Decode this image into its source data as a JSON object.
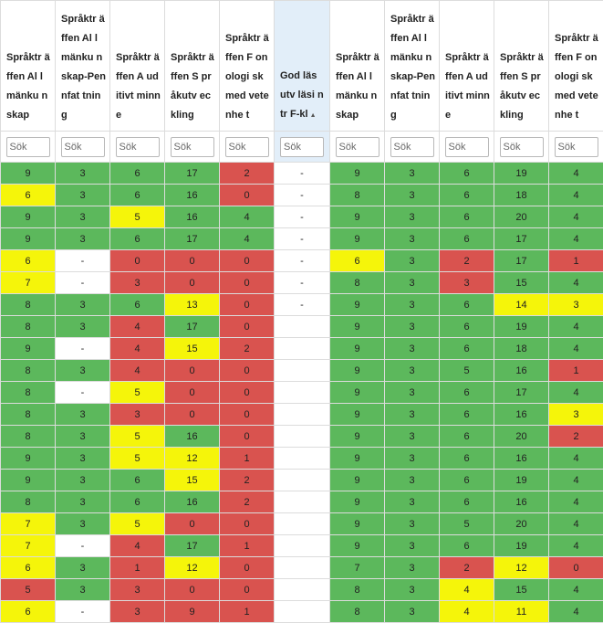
{
  "colors": {
    "green": "#5cb85c",
    "red": "#d9534f",
    "yellow": "#f5f50a",
    "white": "#ffffff",
    "sorted_header_bg": "#e2eef9"
  },
  "table": {
    "sorted_column": 5,
    "sort_indicator": "▲",
    "headers": [
      "Språktr äffen Al lmänku nskap",
      "Språktr äffen Al lmänku nskap-Pennfat tning",
      "Språktr äffen A uditivt minne",
      "Språktr äffen S pråkutv eckling",
      "Språktr äffen F onologi sk med vetenhe t",
      "God läs utv läsi ntr F-kl",
      "Språktr äffen Al lmänku nskap",
      "Språktr äffen Al lmänku nskap-Pennfat tning",
      "Språktr äffen A uditivt minne",
      "Språktr äffen S pråkutv eckling",
      "Språktr äffen F onologi sk med vetenhe t"
    ],
    "filter_placeholder": "Sök",
    "rows": [
      [
        [
          "9",
          "g"
        ],
        [
          "3",
          "g"
        ],
        [
          "6",
          "g"
        ],
        [
          "17",
          "g"
        ],
        [
          "2",
          "r"
        ],
        [
          "-",
          "w"
        ],
        [
          "9",
          "g"
        ],
        [
          "3",
          "g"
        ],
        [
          "6",
          "g"
        ],
        [
          "19",
          "g"
        ],
        [
          "4",
          "g"
        ]
      ],
      [
        [
          "6",
          "y"
        ],
        [
          "3",
          "g"
        ],
        [
          "6",
          "g"
        ],
        [
          "16",
          "g"
        ],
        [
          "0",
          "r"
        ],
        [
          "-",
          "w"
        ],
        [
          "8",
          "g"
        ],
        [
          "3",
          "g"
        ],
        [
          "6",
          "g"
        ],
        [
          "18",
          "g"
        ],
        [
          "4",
          "g"
        ]
      ],
      [
        [
          "9",
          "g"
        ],
        [
          "3",
          "g"
        ],
        [
          "5",
          "y"
        ],
        [
          "16",
          "g"
        ],
        [
          "4",
          "g"
        ],
        [
          "-",
          "w"
        ],
        [
          "9",
          "g"
        ],
        [
          "3",
          "g"
        ],
        [
          "6",
          "g"
        ],
        [
          "20",
          "g"
        ],
        [
          "4",
          "g"
        ]
      ],
      [
        [
          "9",
          "g"
        ],
        [
          "3",
          "g"
        ],
        [
          "6",
          "g"
        ],
        [
          "17",
          "g"
        ],
        [
          "4",
          "g"
        ],
        [
          "-",
          "w"
        ],
        [
          "9",
          "g"
        ],
        [
          "3",
          "g"
        ],
        [
          "6",
          "g"
        ],
        [
          "17",
          "g"
        ],
        [
          "4",
          "g"
        ]
      ],
      [
        [
          "6",
          "y"
        ],
        [
          "-",
          "w"
        ],
        [
          "0",
          "r"
        ],
        [
          "0",
          "r"
        ],
        [
          "0",
          "r"
        ],
        [
          "-",
          "w"
        ],
        [
          "6",
          "y"
        ],
        [
          "3",
          "g"
        ],
        [
          "2",
          "r"
        ],
        [
          "17",
          "g"
        ],
        [
          "1",
          "r"
        ]
      ],
      [
        [
          "7",
          "y"
        ],
        [
          "-",
          "w"
        ],
        [
          "3",
          "r"
        ],
        [
          "0",
          "r"
        ],
        [
          "0",
          "r"
        ],
        [
          "-",
          "w"
        ],
        [
          "8",
          "g"
        ],
        [
          "3",
          "g"
        ],
        [
          "3",
          "r"
        ],
        [
          "15",
          "g"
        ],
        [
          "4",
          "g"
        ]
      ],
      [
        [
          "8",
          "g"
        ],
        [
          "3",
          "g"
        ],
        [
          "6",
          "g"
        ],
        [
          "13",
          "y"
        ],
        [
          "0",
          "r"
        ],
        [
          "-",
          "w"
        ],
        [
          "9",
          "g"
        ],
        [
          "3",
          "g"
        ],
        [
          "6",
          "g"
        ],
        [
          "14",
          "y"
        ],
        [
          "3",
          "y"
        ]
      ],
      [
        [
          "8",
          "g"
        ],
        [
          "3",
          "g"
        ],
        [
          "4",
          "r"
        ],
        [
          "17",
          "g"
        ],
        [
          "0",
          "r"
        ],
        [
          "",
          "w"
        ],
        [
          "9",
          "g"
        ],
        [
          "3",
          "g"
        ],
        [
          "6",
          "g"
        ],
        [
          "19",
          "g"
        ],
        [
          "4",
          "g"
        ]
      ],
      [
        [
          "9",
          "g"
        ],
        [
          "-",
          "w"
        ],
        [
          "4",
          "r"
        ],
        [
          "15",
          "y"
        ],
        [
          "2",
          "r"
        ],
        [
          "",
          "w"
        ],
        [
          "9",
          "g"
        ],
        [
          "3",
          "g"
        ],
        [
          "6",
          "g"
        ],
        [
          "18",
          "g"
        ],
        [
          "4",
          "g"
        ]
      ],
      [
        [
          "8",
          "g"
        ],
        [
          "3",
          "g"
        ],
        [
          "4",
          "r"
        ],
        [
          "0",
          "r"
        ],
        [
          "0",
          "r"
        ],
        [
          "",
          "w"
        ],
        [
          "9",
          "g"
        ],
        [
          "3",
          "g"
        ],
        [
          "5",
          "g"
        ],
        [
          "16",
          "g"
        ],
        [
          "1",
          "r"
        ]
      ],
      [
        [
          "8",
          "g"
        ],
        [
          "-",
          "w"
        ],
        [
          "5",
          "y"
        ],
        [
          "0",
          "r"
        ],
        [
          "0",
          "r"
        ],
        [
          "",
          "w"
        ],
        [
          "9",
          "g"
        ],
        [
          "3",
          "g"
        ],
        [
          "6",
          "g"
        ],
        [
          "17",
          "g"
        ],
        [
          "4",
          "g"
        ]
      ],
      [
        [
          "8",
          "g"
        ],
        [
          "3",
          "g"
        ],
        [
          "3",
          "r"
        ],
        [
          "0",
          "r"
        ],
        [
          "0",
          "r"
        ],
        [
          "",
          "w"
        ],
        [
          "9",
          "g"
        ],
        [
          "3",
          "g"
        ],
        [
          "6",
          "g"
        ],
        [
          "16",
          "g"
        ],
        [
          "3",
          "y"
        ]
      ],
      [
        [
          "8",
          "g"
        ],
        [
          "3",
          "g"
        ],
        [
          "5",
          "y"
        ],
        [
          "16",
          "g"
        ],
        [
          "0",
          "r"
        ],
        [
          "",
          "w"
        ],
        [
          "9",
          "g"
        ],
        [
          "3",
          "g"
        ],
        [
          "6",
          "g"
        ],
        [
          "20",
          "g"
        ],
        [
          "2",
          "r"
        ]
      ],
      [
        [
          "9",
          "g"
        ],
        [
          "3",
          "g"
        ],
        [
          "5",
          "y"
        ],
        [
          "12",
          "y"
        ],
        [
          "1",
          "r"
        ],
        [
          "",
          "w"
        ],
        [
          "9",
          "g"
        ],
        [
          "3",
          "g"
        ],
        [
          "6",
          "g"
        ],
        [
          "16",
          "g"
        ],
        [
          "4",
          "g"
        ]
      ],
      [
        [
          "9",
          "g"
        ],
        [
          "3",
          "g"
        ],
        [
          "6",
          "g"
        ],
        [
          "15",
          "y"
        ],
        [
          "2",
          "r"
        ],
        [
          "",
          "w"
        ],
        [
          "9",
          "g"
        ],
        [
          "3",
          "g"
        ],
        [
          "6",
          "g"
        ],
        [
          "19",
          "g"
        ],
        [
          "4",
          "g"
        ]
      ],
      [
        [
          "8",
          "g"
        ],
        [
          "3",
          "g"
        ],
        [
          "6",
          "g"
        ],
        [
          "16",
          "g"
        ],
        [
          "2",
          "r"
        ],
        [
          "",
          "w"
        ],
        [
          "9",
          "g"
        ],
        [
          "3",
          "g"
        ],
        [
          "6",
          "g"
        ],
        [
          "16",
          "g"
        ],
        [
          "4",
          "g"
        ]
      ],
      [
        [
          "7",
          "y"
        ],
        [
          "3",
          "g"
        ],
        [
          "5",
          "y"
        ],
        [
          "0",
          "r"
        ],
        [
          "0",
          "r"
        ],
        [
          "",
          "w"
        ],
        [
          "9",
          "g"
        ],
        [
          "3",
          "g"
        ],
        [
          "5",
          "g"
        ],
        [
          "20",
          "g"
        ],
        [
          "4",
          "g"
        ]
      ],
      [
        [
          "7",
          "y"
        ],
        [
          "-",
          "w"
        ],
        [
          "4",
          "r"
        ],
        [
          "17",
          "g"
        ],
        [
          "1",
          "r"
        ],
        [
          "",
          "w"
        ],
        [
          "9",
          "g"
        ],
        [
          "3",
          "g"
        ],
        [
          "6",
          "g"
        ],
        [
          "19",
          "g"
        ],
        [
          "4",
          "g"
        ]
      ],
      [
        [
          "6",
          "y"
        ],
        [
          "3",
          "g"
        ],
        [
          "1",
          "r"
        ],
        [
          "12",
          "y"
        ],
        [
          "0",
          "r"
        ],
        [
          "",
          "w"
        ],
        [
          "7",
          "g"
        ],
        [
          "3",
          "g"
        ],
        [
          "2",
          "r"
        ],
        [
          "12",
          "y"
        ],
        [
          "0",
          "r"
        ]
      ],
      [
        [
          "5",
          "r"
        ],
        [
          "3",
          "g"
        ],
        [
          "3",
          "r"
        ],
        [
          "0",
          "r"
        ],
        [
          "0",
          "r"
        ],
        [
          "",
          "w"
        ],
        [
          "8",
          "g"
        ],
        [
          "3",
          "g"
        ],
        [
          "4",
          "y"
        ],
        [
          "15",
          "g"
        ],
        [
          "4",
          "g"
        ]
      ],
      [
        [
          "6",
          "y"
        ],
        [
          "-",
          "w"
        ],
        [
          "3",
          "r"
        ],
        [
          "9",
          "r"
        ],
        [
          "1",
          "r"
        ],
        [
          "",
          "w"
        ],
        [
          "8",
          "g"
        ],
        [
          "3",
          "g"
        ],
        [
          "4",
          "y"
        ],
        [
          "11",
          "y"
        ],
        [
          "4",
          "g"
        ]
      ]
    ]
  }
}
